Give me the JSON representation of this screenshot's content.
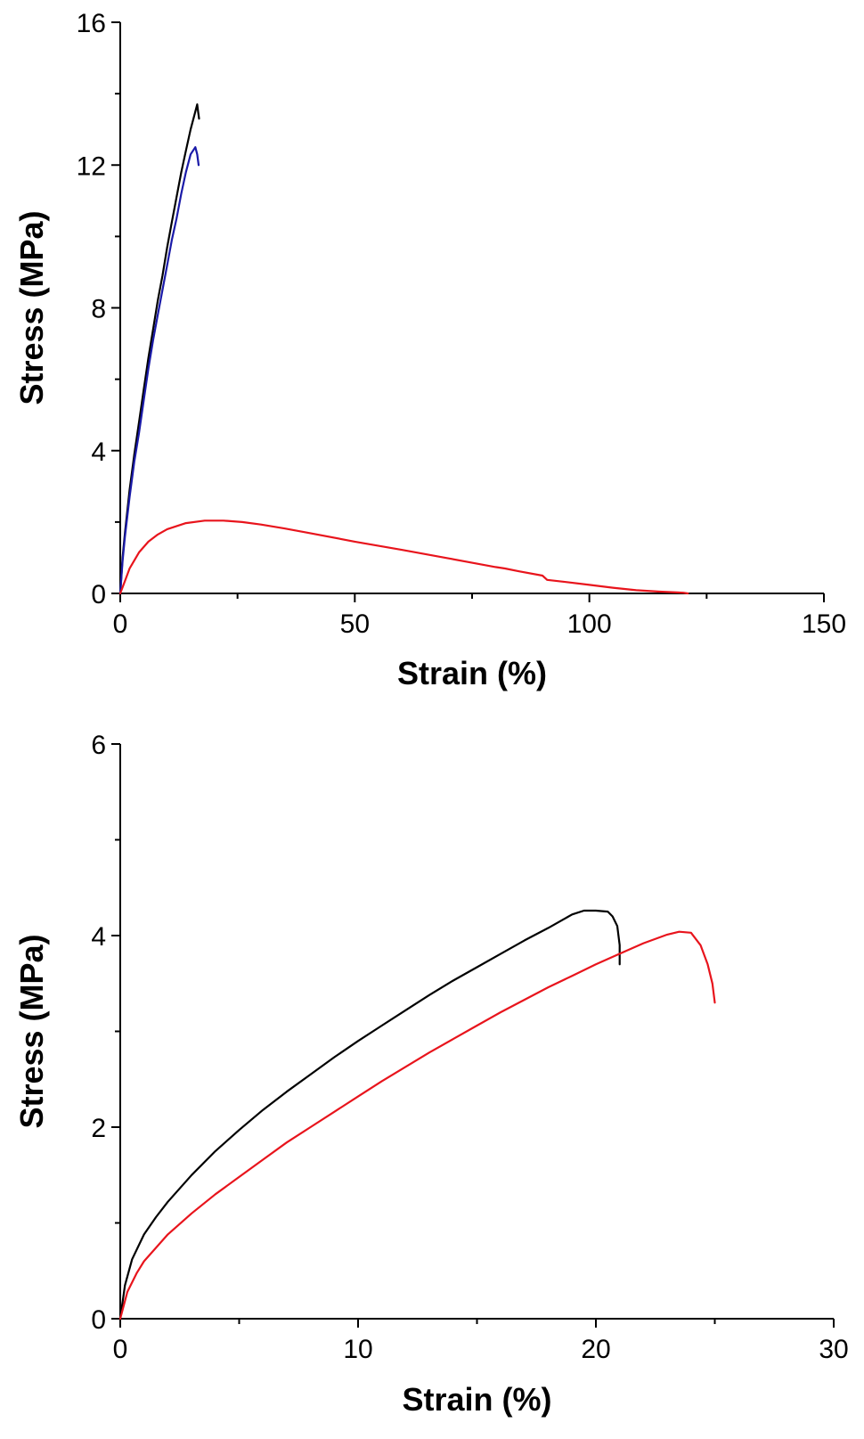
{
  "chart_data": [
    {
      "type": "line",
      "xlabel": "Strain (%)",
      "ylabel": "Stress (MPa)",
      "xlim": [
        0,
        150
      ],
      "ylim": [
        0,
        16
      ],
      "x_ticks": [
        "0",
        "50",
        "100",
        "150"
      ],
      "y_ticks": [
        "0",
        "4",
        "8",
        "12",
        "16"
      ],
      "grid": false,
      "series": [
        {
          "color": "#000000",
          "x": [
            0,
            0.5,
            1,
            2,
            3,
            4,
            5,
            6,
            7,
            8,
            9,
            10,
            11,
            12,
            13,
            14,
            15,
            16,
            16.4,
            16.6,
            16.8
          ],
          "y": [
            0,
            1.0,
            1.7,
            2.9,
            3.9,
            4.8,
            5.7,
            6.6,
            7.4,
            8.2,
            8.9,
            9.7,
            10.4,
            11.1,
            11.8,
            12.4,
            13.0,
            13.5,
            13.7,
            13.5,
            13.3
          ]
        },
        {
          "color": "#1a1aa8",
          "x": [
            0,
            0.5,
            1,
            2,
            3,
            4,
            5,
            6,
            7,
            8,
            9,
            10,
            11,
            12,
            13,
            14,
            15,
            16,
            16.4,
            16.7
          ],
          "y": [
            0,
            0.9,
            1.6,
            2.7,
            3.7,
            4.5,
            5.4,
            6.3,
            7.1,
            7.8,
            8.5,
            9.2,
            9.9,
            10.5,
            11.2,
            11.8,
            12.3,
            12.5,
            12.3,
            12.0
          ]
        },
        {
          "color": "#e8141c",
          "x": [
            0,
            1,
            2,
            4,
            6,
            8,
            10,
            14,
            18,
            22,
            26,
            30,
            35,
            40,
            50,
            60,
            70,
            80,
            82,
            85,
            90,
            91,
            95,
            100,
            105,
            110,
            115,
            120,
            121
          ],
          "y": [
            0,
            0.35,
            0.7,
            1.15,
            1.45,
            1.65,
            1.8,
            1.97,
            2.04,
            2.04,
            2.0,
            1.93,
            1.82,
            1.7,
            1.45,
            1.22,
            0.98,
            0.74,
            0.7,
            0.62,
            0.5,
            0.38,
            0.32,
            0.24,
            0.16,
            0.09,
            0.05,
            0.02,
            0
          ]
        }
      ]
    },
    {
      "type": "line",
      "xlabel": "Strain (%)",
      "ylabel": "Stress (MPa)",
      "xlim": [
        0,
        30
      ],
      "ylim": [
        0,
        6
      ],
      "x_ticks": [
        "0",
        "10",
        "20",
        "30"
      ],
      "y_ticks": [
        "0",
        "2",
        "4",
        "6"
      ],
      "grid": false,
      "series": [
        {
          "color": "#000000",
          "x": [
            0,
            0.2,
            0.5,
            1,
            1.5,
            2,
            3,
            4,
            5,
            6,
            7,
            8,
            9,
            10,
            11,
            12,
            13,
            14,
            15,
            16,
            17,
            18,
            19,
            19.5,
            20,
            20.5,
            20.7,
            20.9,
            21,
            21
          ],
          "y": [
            0,
            0.35,
            0.62,
            0.88,
            1.06,
            1.22,
            1.5,
            1.75,
            1.97,
            2.18,
            2.37,
            2.55,
            2.73,
            2.9,
            3.06,
            3.22,
            3.38,
            3.53,
            3.67,
            3.81,
            3.95,
            4.08,
            4.22,
            4.26,
            4.26,
            4.25,
            4.2,
            4.1,
            3.9,
            3.7
          ]
        },
        {
          "color": "#e8141c",
          "x": [
            0,
            0.3,
            0.7,
            1,
            2,
            3,
            4,
            5,
            6,
            7,
            8,
            9,
            10,
            11,
            12,
            13,
            14,
            15,
            16,
            17,
            18,
            19,
            20,
            21,
            22,
            23,
            23.5,
            24,
            24.4,
            24.7,
            24.9,
            25
          ],
          "y": [
            0,
            0.28,
            0.48,
            0.6,
            0.88,
            1.1,
            1.3,
            1.48,
            1.66,
            1.84,
            2.0,
            2.16,
            2.32,
            2.48,
            2.63,
            2.78,
            2.92,
            3.06,
            3.2,
            3.33,
            3.46,
            3.58,
            3.7,
            3.81,
            3.92,
            4.01,
            4.04,
            4.03,
            3.9,
            3.7,
            3.5,
            3.3
          ]
        }
      ]
    }
  ]
}
